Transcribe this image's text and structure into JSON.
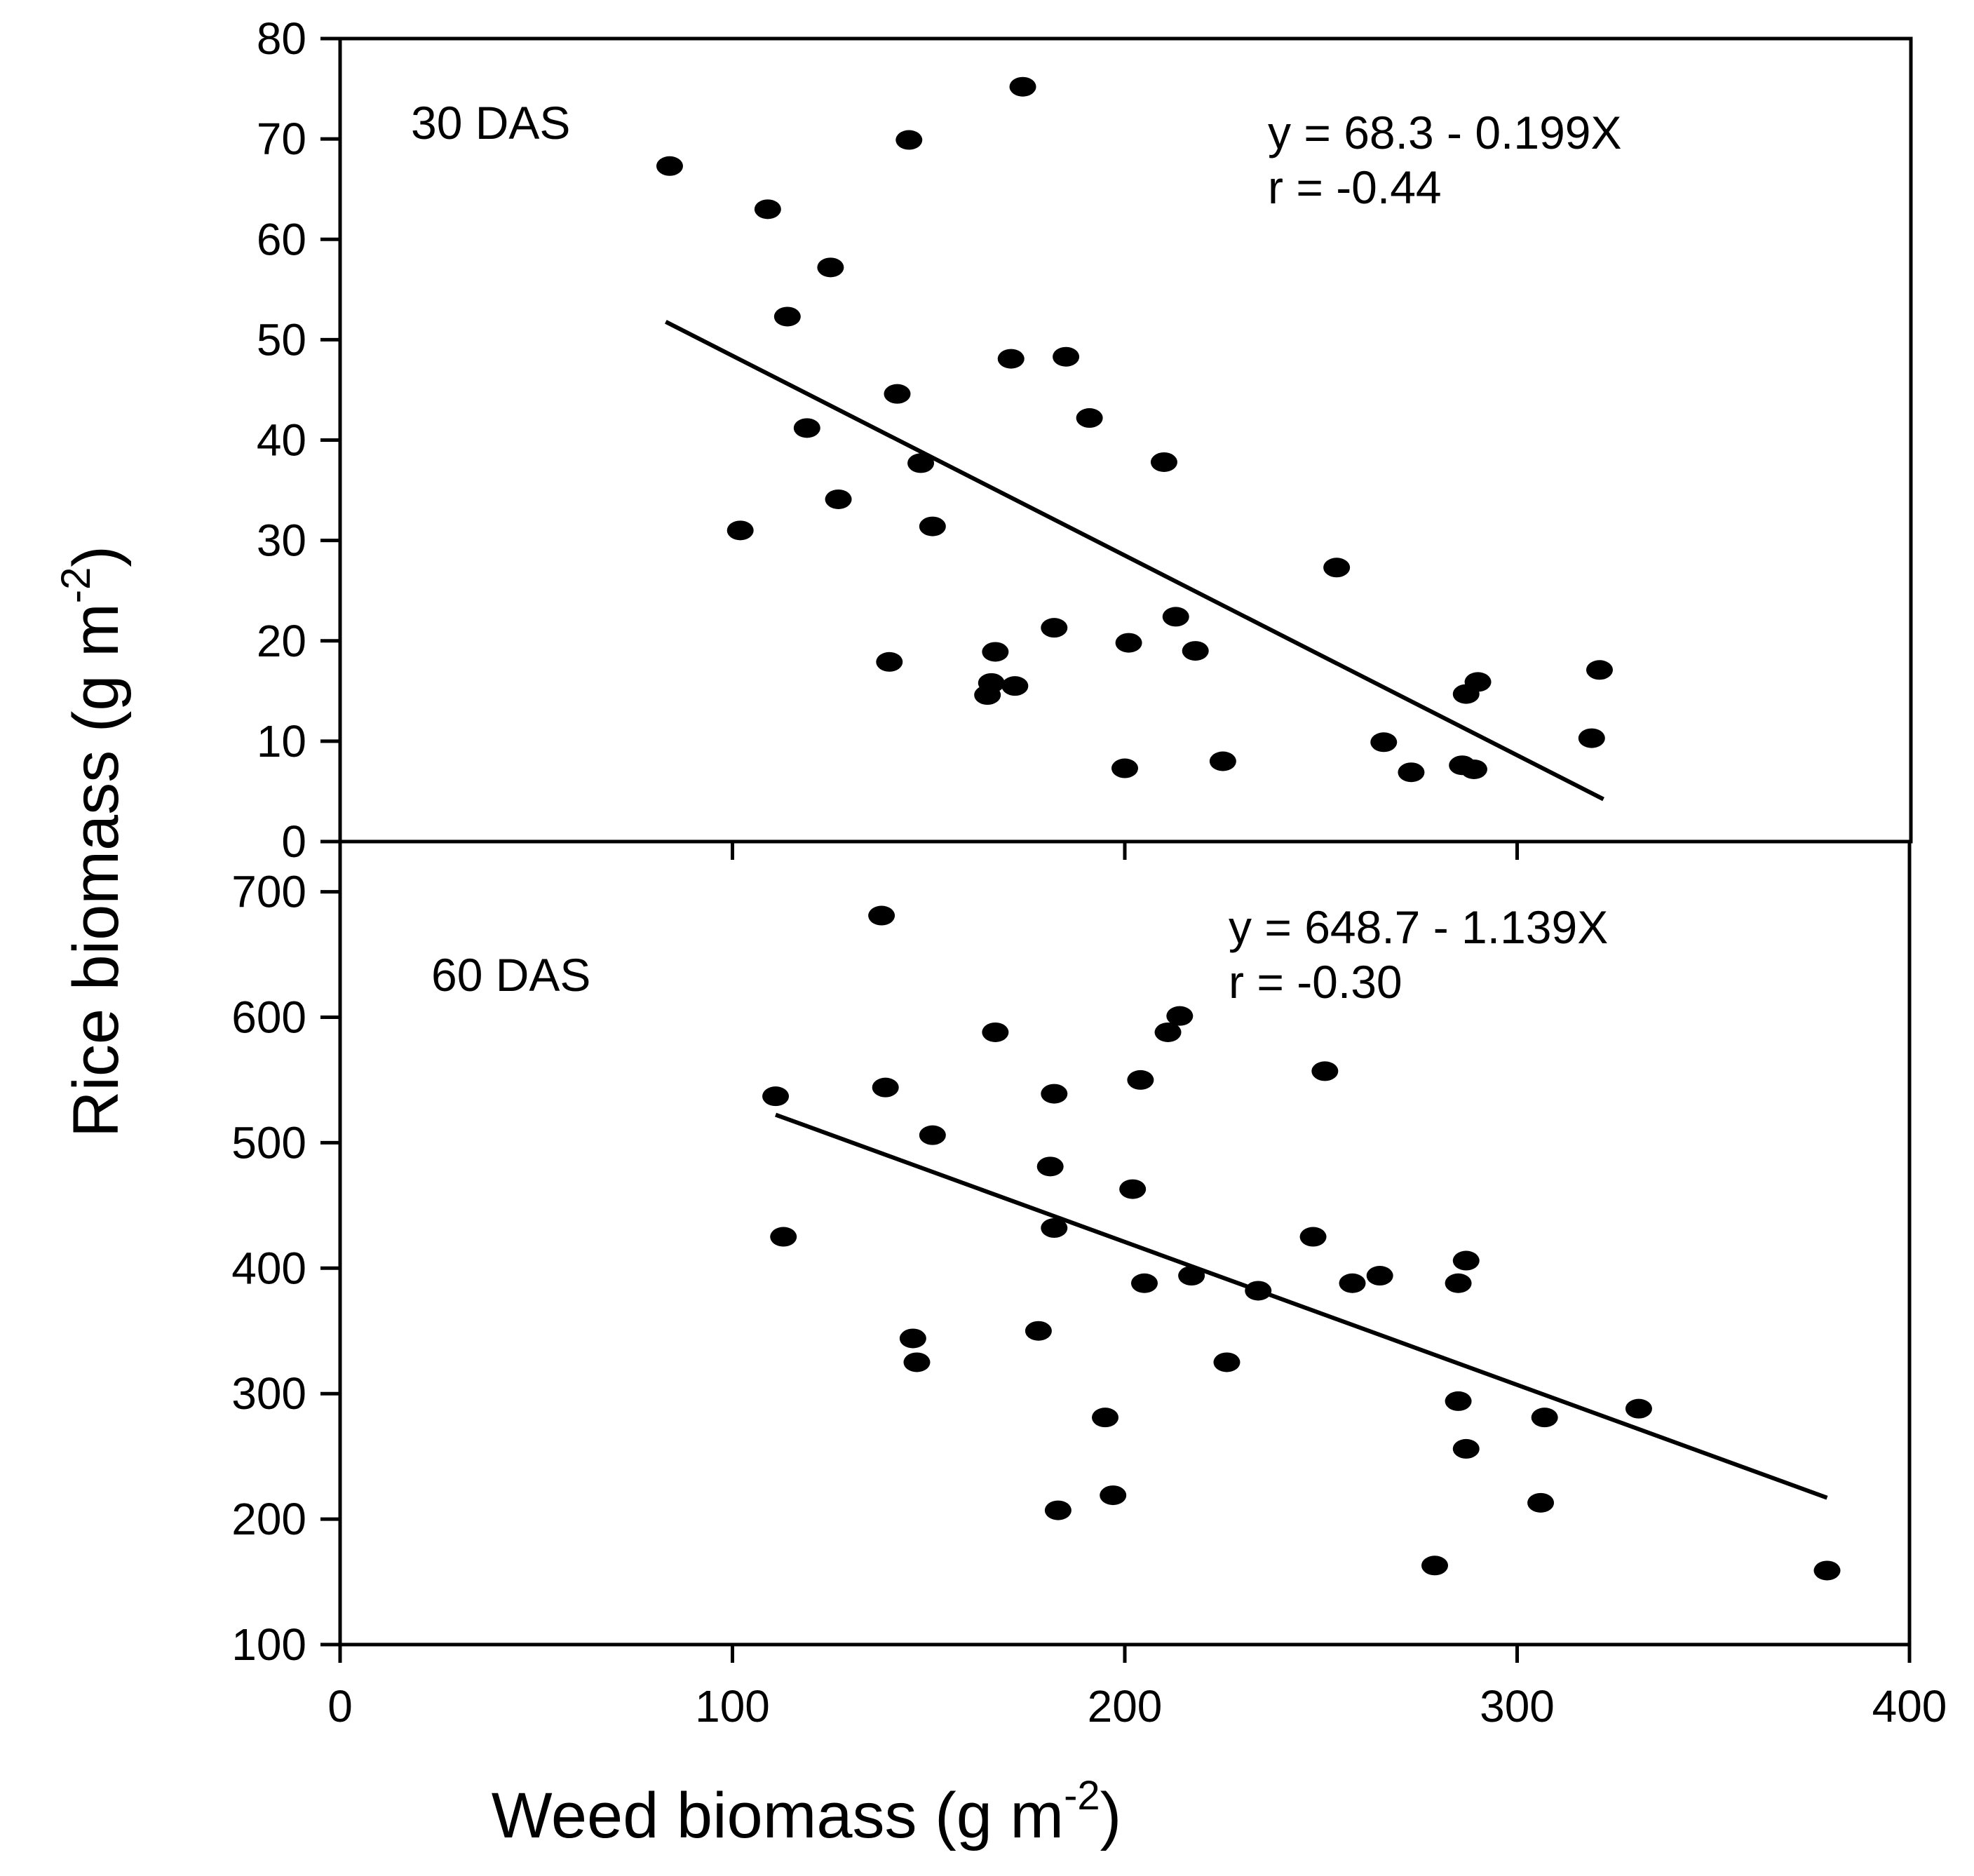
{
  "chart_data": [
    {
      "type": "scatter",
      "panel": "top",
      "panel_label": "30 DAS",
      "equation": "y = 68.3 - 0.199X",
      "r_text": "r = -0.44",
      "xlim": [
        0,
        400
      ],
      "ylim": [
        0,
        80
      ],
      "yticks": [
        0,
        10,
        20,
        30,
        40,
        50,
        60,
        70,
        80
      ],
      "regression": {
        "intercept": 68.3,
        "slope": -0.199,
        "x_range": [
          83,
          322
        ]
      },
      "points": [
        {
          "x": 84,
          "y": 67.3
        },
        {
          "x": 102,
          "y": 31
        },
        {
          "x": 109,
          "y": 63
        },
        {
          "x": 114,
          "y": 52.3
        },
        {
          "x": 119,
          "y": 41.2
        },
        {
          "x": 125,
          "y": 57.2
        },
        {
          "x": 127,
          "y": 34.1
        },
        {
          "x": 140,
          "y": 17.9
        },
        {
          "x": 142,
          "y": 44.6
        },
        {
          "x": 145,
          "y": 69.9
        },
        {
          "x": 148,
          "y": 37.7
        },
        {
          "x": 151,
          "y": 31.4
        },
        {
          "x": 165,
          "y": 14.6
        },
        {
          "x": 166,
          "y": 15.8
        },
        {
          "x": 167,
          "y": 18.9
        },
        {
          "x": 171,
          "y": 48.1
        },
        {
          "x": 172,
          "y": 15.5
        },
        {
          "x": 174,
          "y": 75.2
        },
        {
          "x": 182,
          "y": 21.3
        },
        {
          "x": 185,
          "y": 48.3
        },
        {
          "x": 191,
          "y": 42.2
        },
        {
          "x": 200,
          "y": 7.3
        },
        {
          "x": 201,
          "y": 19.8
        },
        {
          "x": 210,
          "y": 37.8
        },
        {
          "x": 213,
          "y": 22.4
        },
        {
          "x": 218,
          "y": 19
        },
        {
          "x": 225,
          "y": 8
        },
        {
          "x": 254,
          "y": 27.3
        },
        {
          "x": 266,
          "y": 9.9
        },
        {
          "x": 273,
          "y": 6.9
        },
        {
          "x": 286,
          "y": 7.6
        },
        {
          "x": 287,
          "y": 14.7
        },
        {
          "x": 289,
          "y": 7.2
        },
        {
          "x": 290,
          "y": 15.9
        },
        {
          "x": 319,
          "y": 10.3
        },
        {
          "x": 321,
          "y": 17.1
        }
      ]
    },
    {
      "type": "scatter",
      "panel": "bottom",
      "panel_label": "60 DAS",
      "equation": "y = 648.7 - 1.139X",
      "r_text": "r = -0.30",
      "xlim": [
        0,
        400
      ],
      "ylim": [
        100,
        740
      ],
      "yticks": [
        100,
        200,
        300,
        400,
        500,
        600,
        700
      ],
      "xticks": [
        0,
        100,
        200,
        300,
        400
      ],
      "xlabel": "Weed biomass (g m",
      "xlabel_sup": "-2",
      "xlabel_end": ")",
      "ylabel": "Rice biomass (g m",
      "ylabel_sup": "-2",
      "ylabel_end": ")",
      "regression": {
        "intercept": 648.7,
        "slope": -1.139,
        "x_range": [
          111,
          379
        ]
      },
      "points": [
        {
          "x": 111,
          "y": 537
        },
        {
          "x": 113,
          "y": 425
        },
        {
          "x": 138,
          "y": 681
        },
        {
          "x": 139,
          "y": 544
        },
        {
          "x": 146,
          "y": 344
        },
        {
          "x": 147,
          "y": 325
        },
        {
          "x": 151,
          "y": 506
        },
        {
          "x": 167,
          "y": 588
        },
        {
          "x": 178,
          "y": 350
        },
        {
          "x": 181,
          "y": 481
        },
        {
          "x": 182,
          "y": 432
        },
        {
          "x": 182,
          "y": 539
        },
        {
          "x": 183,
          "y": 207
        },
        {
          "x": 195,
          "y": 281
        },
        {
          "x": 197,
          "y": 219
        },
        {
          "x": 202,
          "y": 463
        },
        {
          "x": 204,
          "y": 550
        },
        {
          "x": 205,
          "y": 388
        },
        {
          "x": 211,
          "y": 588
        },
        {
          "x": 214,
          "y": 601
        },
        {
          "x": 217,
          "y": 394
        },
        {
          "x": 226,
          "y": 325
        },
        {
          "x": 234,
          "y": 382
        },
        {
          "x": 248,
          "y": 425
        },
        {
          "x": 251,
          "y": 557
        },
        {
          "x": 258,
          "y": 388
        },
        {
          "x": 265,
          "y": 394
        },
        {
          "x": 279,
          "y": 163
        },
        {
          "x": 285,
          "y": 294
        },
        {
          "x": 285,
          "y": 388
        },
        {
          "x": 287,
          "y": 406
        },
        {
          "x": 287,
          "y": 256
        },
        {
          "x": 306,
          "y": 213
        },
        {
          "x": 307,
          "y": 281
        },
        {
          "x": 331,
          "y": 288
        },
        {
          "x": 379,
          "y": 159
        }
      ]
    }
  ]
}
